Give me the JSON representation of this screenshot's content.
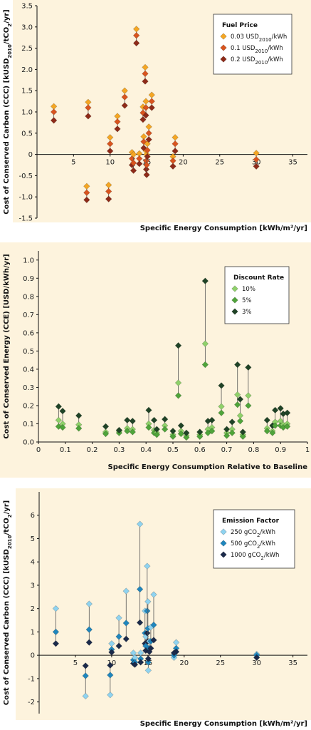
{
  "colors": {
    "plot_bg": "#fdf3dd",
    "outer_bg": "#ffffff",
    "stem": "#555555",
    "axis": "#111111"
  },
  "chart_data": [
    {
      "type": "scatter",
      "xlabel": "Specific Energy Consumption [kWh/m²/yr]",
      "ylabel_parts": [
        "Cost of Conserved Carbon (CCC) [kUSD",
        "2010",
        "/tCO",
        "2",
        "/yr]"
      ],
      "xlim": [
        0,
        37
      ],
      "ylim": [
        -1.5,
        3.5
      ],
      "xticks": [
        5,
        10,
        15,
        20,
        25,
        30,
        35
      ],
      "xtick_labels": [
        "5",
        "10",
        "15",
        "20",
        "25",
        "30",
        "35"
      ],
      "yticks": [
        -1.5,
        -1.0,
        -0.5,
        0,
        0.5,
        1.0,
        1.5,
        2.0,
        2.5,
        3.0,
        3.5
      ],
      "ytick_labels": [
        "-1.5",
        "-1.0",
        "-0.5",
        "0",
        "0.5",
        "1.0",
        "1.5",
        "2.0",
        "2.5",
        "3.0",
        "3.5"
      ],
      "x_axis_at_zero": true,
      "legend": {
        "title": "Fuel Price",
        "position": "top-right",
        "entries": [
          {
            "parts": [
              "0.03 USD",
              "2010",
              "/kWh"
            ],
            "color": "#f5a623"
          },
          {
            "parts": [
              "0.1 USD",
              "2010",
              "/kWh"
            ],
            "color": "#d9541e"
          },
          {
            "parts": [
              "0.2 USD",
              "2010",
              "/kWh"
            ],
            "color": "#8e2a18"
          }
        ]
      },
      "series_names": [
        "0.03 USD2010/kWh",
        "0.1 USD2010/kWh",
        "0.2 USD2010/kWh"
      ],
      "groups": [
        {
          "x": 2.3,
          "y": [
            1.13,
            1.0,
            0.8
          ]
        },
        {
          "x": 6.8,
          "y": [
            -0.75,
            -0.9,
            -1.07
          ]
        },
        {
          "x": 7.0,
          "y": [
            1.23,
            1.1,
            0.9
          ]
        },
        {
          "x": 9.8,
          "y": [
            -0.72,
            -0.87,
            -1.05
          ]
        },
        {
          "x": 10.0,
          "y": [
            0.4,
            0.25,
            0.08
          ]
        },
        {
          "x": 11.0,
          "y": [
            0.9,
            0.77,
            0.6
          ]
        },
        {
          "x": 12.0,
          "y": [
            1.5,
            1.35,
            1.15
          ]
        },
        {
          "x": 13.0,
          "y": [
            0.05,
            -0.1,
            -0.25
          ]
        },
        {
          "x": 13.2,
          "y": [
            0.0,
            -0.2,
            -0.38
          ]
        },
        {
          "x": 13.6,
          "y": [
            2.95,
            2.8,
            2.62
          ]
        },
        {
          "x": 14.0,
          "y": [
            0.02,
            -0.1,
            -0.22
          ]
        },
        {
          "x": 14.5,
          "y": [
            1.12,
            0.98,
            0.82
          ]
        },
        {
          "x": 14.6,
          "y": [
            0.42,
            0.3,
            0.15
          ]
        },
        {
          "x": 14.8,
          "y": [
            2.05,
            1.9,
            1.72
          ]
        },
        {
          "x": 14.9,
          "y": [
            1.25,
            1.1,
            0.92
          ]
        },
        {
          "x": 14.95,
          "y": [
            0.08,
            -0.15,
            -0.35
          ]
        },
        {
          "x": 15.0,
          "y": [
            0.0,
            -0.25,
            -0.48
          ]
        },
        {
          "x": 15.1,
          "y": [
            0.25,
            0.1,
            -0.05
          ]
        },
        {
          "x": 15.3,
          "y": [
            0.65,
            0.5,
            0.35
          ]
        },
        {
          "x": 15.7,
          "y": [
            1.4,
            1.25,
            1.1
          ]
        },
        {
          "x": 18.9,
          "y": [
            0.4,
            0.25,
            0.08
          ]
        },
        {
          "x": 18.6,
          "y": [
            -0.05,
            -0.15,
            -0.28
          ]
        },
        {
          "x": 30.0,
          "y": [
            0.03,
            -0.12,
            -0.28
          ]
        }
      ]
    },
    {
      "type": "scatter",
      "xlabel": "Specific Energy Consumption Relative to Baseline",
      "ylabel_parts": [
        "Cost of Conserved Energy (CCE) [USD/kWh/yr]"
      ],
      "xlim": [
        0,
        1
      ],
      "ylim": [
        0,
        1.05
      ],
      "xticks": [
        0,
        0.1,
        0.2,
        0.3,
        0.4,
        0.5,
        0.6,
        0.7,
        0.8,
        0.9,
        1
      ],
      "xtick_labels": [
        "0",
        "0.1",
        "0.2",
        "0.3",
        "0.4",
        "0.5",
        "0.6",
        "0.7",
        "0.8",
        "0.9",
        "1"
      ],
      "yticks": [
        0,
        0.1,
        0.2,
        0.3,
        0.4,
        0.5,
        0.6,
        0.7,
        0.8,
        0.9,
        1.0
      ],
      "ytick_labels": [
        "0.0",
        "0.1",
        "0.2",
        "0.3",
        "0.4",
        "0.5",
        "0.6",
        "0.7",
        "0.8",
        "0.9",
        "1.0"
      ],
      "x_axis_at_zero": false,
      "legend": {
        "title": "Discount Rate",
        "position": "top-right",
        "entries": [
          {
            "parts": [
              "10%"
            ],
            "color": "#8fd16a"
          },
          {
            "parts": [
              "5%"
            ],
            "color": "#4fa43a"
          },
          {
            "parts": [
              "3%"
            ],
            "color": "#1f4326"
          }
        ]
      },
      "series_names": [
        "10%",
        "5%",
        "3%"
      ],
      "groups": [
        {
          "x": 0.075,
          "y": [
            0.12,
            0.085,
            0.195
          ]
        },
        {
          "x": 0.09,
          "y": [
            0.1,
            0.08,
            0.17
          ]
        },
        {
          "x": 0.15,
          "y": [
            0.095,
            0.075,
            0.145
          ]
        },
        {
          "x": 0.25,
          "y": [
            0.055,
            0.045,
            0.085
          ]
        },
        {
          "x": 0.3,
          "y": [
            0.06,
            0.05,
            0.065
          ]
        },
        {
          "x": 0.33,
          "y": [
            0.075,
            0.06,
            0.12
          ]
        },
        {
          "x": 0.35,
          "y": [
            0.07,
            0.055,
            0.115
          ]
        },
        {
          "x": 0.41,
          "y": [
            0.1,
            0.08,
            0.175
          ]
        },
        {
          "x": 0.43,
          "y": [
            0.065,
            0.05,
            0.12
          ]
        },
        {
          "x": 0.44,
          "y": [
            0.05,
            0.04,
            0.07
          ]
        },
        {
          "x": 0.47,
          "y": [
            0.09,
            0.07,
            0.125
          ]
        },
        {
          "x": 0.5,
          "y": [
            0.04,
            0.03,
            0.06
          ]
        },
        {
          "x": 0.52,
          "y": [
            0.325,
            0.255,
            0.53
          ]
        },
        {
          "x": 0.53,
          "y": [
            0.06,
            0.045,
            0.09
          ]
        },
        {
          "x": 0.55,
          "y": [
            0.035,
            0.025,
            0.05
          ]
        },
        {
          "x": 0.6,
          "y": [
            0.04,
            0.03,
            0.055
          ]
        },
        {
          "x": 0.62,
          "y": [
            0.54,
            0.425,
            0.885
          ]
        },
        {
          "x": 0.63,
          "y": [
            0.07,
            0.05,
            0.115
          ]
        },
        {
          "x": 0.645,
          "y": [
            0.08,
            0.06,
            0.12
          ]
        },
        {
          "x": 0.68,
          "y": [
            0.195,
            0.16,
            0.31
          ]
        },
        {
          "x": 0.7,
          "y": [
            0.05,
            0.035,
            0.07
          ]
        },
        {
          "x": 0.72,
          "y": [
            0.07,
            0.05,
            0.11
          ]
        },
        {
          "x": 0.74,
          "y": [
            0.26,
            0.205,
            0.425
          ]
        },
        {
          "x": 0.75,
          "y": [
            0.145,
            0.115,
            0.235
          ]
        },
        {
          "x": 0.76,
          "y": [
            0.04,
            0.03,
            0.055
          ]
        },
        {
          "x": 0.78,
          "y": [
            0.255,
            0.2,
            0.41
          ]
        },
        {
          "x": 0.85,
          "y": [
            0.075,
            0.06,
            0.12
          ]
        },
        {
          "x": 0.87,
          "y": [
            0.06,
            0.05,
            0.09
          ]
        },
        {
          "x": 0.88,
          "y": [
            0.11,
            0.09,
            0.175
          ]
        },
        {
          "x": 0.9,
          "y": [
            0.115,
            0.09,
            0.185
          ]
        },
        {
          "x": 0.91,
          "y": [
            0.095,
            0.08,
            0.155
          ]
        },
        {
          "x": 0.925,
          "y": [
            0.1,
            0.085,
            0.16
          ]
        }
      ]
    },
    {
      "type": "scatter",
      "xlabel": "Specific Energy Consumption [kWh/m²/yr]",
      "ylabel_parts": [
        "Cost of Conserved Carbon (CCC) [kUSD",
        "2010",
        "/tCO",
        "2",
        "/yr]"
      ],
      "xlim": [
        0,
        37
      ],
      "ylim": [
        -2.5,
        7
      ],
      "xticks": [
        5,
        10,
        15,
        20,
        25,
        30,
        35
      ],
      "xtick_labels": [
        "5",
        "10",
        "15",
        "20",
        "25",
        "30",
        "35"
      ],
      "yticks": [
        -2,
        -1,
        0,
        1,
        2,
        3,
        4,
        5,
        6
      ],
      "ytick_labels": [
        "-2",
        "-1",
        "0",
        "1",
        "2",
        "3",
        "4",
        "5",
        "6"
      ],
      "x_axis_at_zero": true,
      "legend": {
        "title": "Emission Factor",
        "position": "top-right",
        "entries": [
          {
            "parts": [
              "250 gCO",
              "2",
              "/kWh"
            ],
            "color": "#8fd3f0"
          },
          {
            "parts": [
              "500 gCO",
              "2",
              "/kWh"
            ],
            "color": "#1f86bd"
          },
          {
            "parts": [
              "1000 gCO",
              "2",
              "/kWh"
            ],
            "color": "#1b2a4a"
          }
        ]
      },
      "series_names": [
        "250 gCO2/kWh",
        "500 gCO2/kWh",
        "1000 gCO2/kWh"
      ],
      "groups": [
        {
          "x": 2.3,
          "y": [
            2.0,
            1.0,
            0.5
          ]
        },
        {
          "x": 6.4,
          "y": [
            -1.75,
            -0.88,
            -0.45
          ]
        },
        {
          "x": 6.9,
          "y": [
            2.2,
            1.1,
            0.55
          ]
        },
        {
          "x": 9.8,
          "y": [
            -1.7,
            -0.85,
            -0.43
          ]
        },
        {
          "x": 10.0,
          "y": [
            0.5,
            0.25,
            0.13
          ]
        },
        {
          "x": 11.0,
          "y": [
            1.6,
            0.8,
            0.4
          ]
        },
        {
          "x": 12.0,
          "y": [
            2.75,
            1.38,
            0.7
          ]
        },
        {
          "x": 13.0,
          "y": [
            0.1,
            -0.2,
            -0.35
          ]
        },
        {
          "x": 13.2,
          "y": [
            -0.1,
            -0.3,
            -0.4
          ]
        },
        {
          "x": 13.9,
          "y": [
            5.62,
            2.83,
            1.4
          ]
        },
        {
          "x": 14.0,
          "y": [
            0.1,
            -0.15,
            -0.3
          ]
        },
        {
          "x": 14.6,
          "y": [
            1.9,
            0.95,
            0.5
          ]
        },
        {
          "x": 14.7,
          "y": [
            0.8,
            0.4,
            0.2
          ]
        },
        {
          "x": 14.9,
          "y": [
            3.82,
            1.9,
            0.95
          ]
        },
        {
          "x": 15.0,
          "y": [
            2.3,
            1.15,
            0.6
          ]
        },
        {
          "x": 15.05,
          "y": [
            -0.65,
            -0.3,
            -0.15
          ]
        },
        {
          "x": 15.2,
          "y": [
            0.6,
            0.3,
            0.15
          ]
        },
        {
          "x": 15.4,
          "y": [
            1.2,
            0.6,
            0.3
          ]
        },
        {
          "x": 15.8,
          "y": [
            2.6,
            1.3,
            0.65
          ]
        },
        {
          "x": 18.9,
          "y": [
            0.55,
            0.3,
            0.15
          ]
        },
        {
          "x": 18.6,
          "y": [
            -0.1,
            0.0,
            0.1
          ]
        },
        {
          "x": 30.0,
          "y": [
            0.05,
            0.0,
            -0.1
          ]
        }
      ]
    }
  ]
}
